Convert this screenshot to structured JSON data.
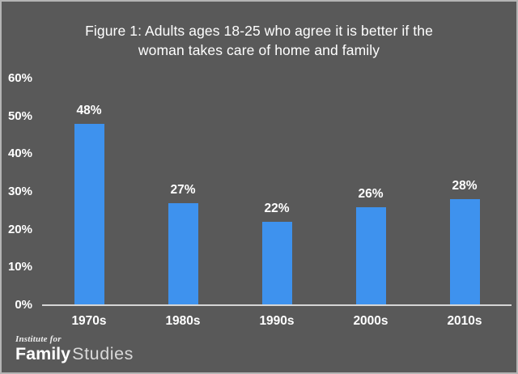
{
  "chart_data": {
    "type": "bar",
    "title": "Figure 1: Adults ages 18-25 who agree it is better if the woman takes care of home and family",
    "title_lines": [
      "Figure 1: Adults ages 18-25 who agree it is better if the",
      "woman takes care of home and family"
    ],
    "categories": [
      "1970s",
      "1980s",
      "1990s",
      "2000s",
      "2010s"
    ],
    "values": [
      48,
      27,
      22,
      26,
      28
    ],
    "value_labels": [
      "48%",
      "27%",
      "22%",
      "26%",
      "28%"
    ],
    "yticks": [
      {
        "label": "0%",
        "value": 0
      },
      {
        "label": "10%",
        "value": 10
      },
      {
        "label": "20%",
        "value": 20
      },
      {
        "label": "30%",
        "value": 30
      },
      {
        "label": "40%",
        "value": 40
      },
      {
        "label": "50%",
        "value": 50
      },
      {
        "label": "60%",
        "value": 60
      }
    ],
    "ylim": [
      0,
      60
    ],
    "xlabel": "",
    "ylabel": "",
    "grid": false,
    "legend": "none"
  },
  "logo": {
    "line1": "Institute for",
    "family": "Family",
    "studies": "Studies"
  },
  "colors": {
    "background": "#595959",
    "bar": "#3E92EE",
    "axis_line": "#D6D6D6",
    "text": "#FFFFFF",
    "studies_text": "#D9D9D9",
    "frame_border": "#B4B4B4"
  }
}
